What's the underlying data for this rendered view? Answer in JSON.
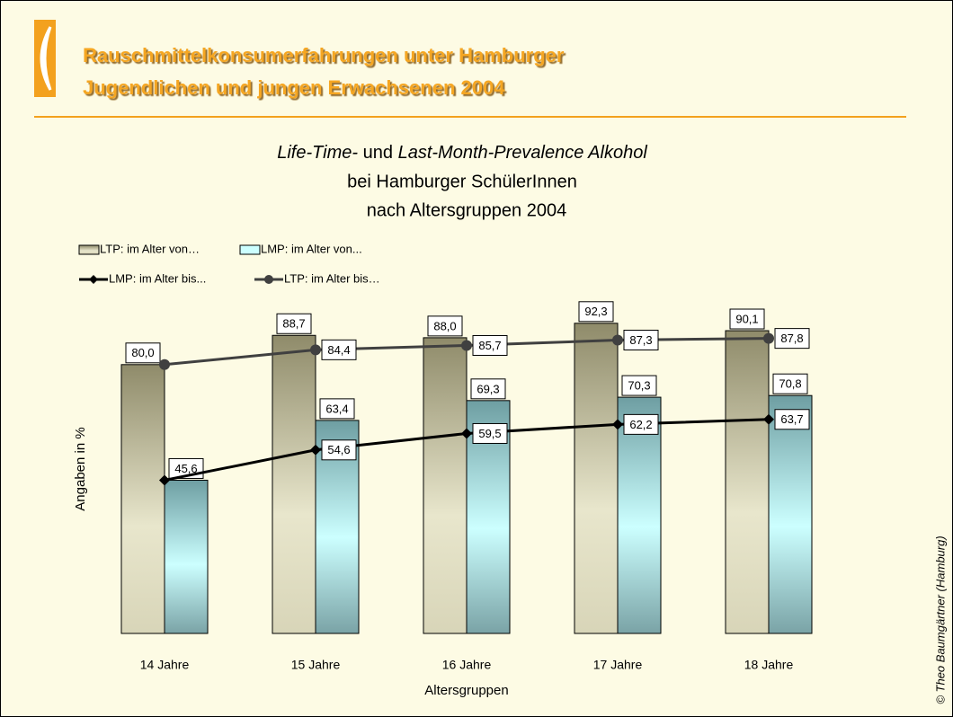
{
  "header": {
    "title_lines": [
      "Rauschmittelkonsumerfahrungen unter Hamburger",
      "Jugendlichen und jungen Erwachsenen 2004"
    ]
  },
  "credit": "© Theo Baumgärtner (Hamburg)",
  "chart_data": {
    "type": "bar",
    "title_parts": [
      "Life-Time-",
      "und",
      "Last-Month-Prevalence Alkohol"
    ],
    "subtitle_lines": [
      "bei Hamburger SchülerInnen",
      "nach Altersgruppen 2004"
    ],
    "y_label": "Angaben in %",
    "x_label": "Altersgruppen",
    "categories": [
      "14 Jahre",
      "15 Jahre",
      "16 Jahre",
      "17 Jahre",
      "18 Jahre"
    ],
    "ylim": [
      0,
      100
    ],
    "series": [
      {
        "name": "LTP: im Alter von…",
        "type": "bar",
        "color": "#9c9878",
        "values": [
          80.0,
          88.7,
          88.0,
          92.3,
          90.1
        ],
        "value_labels": [
          "80,0",
          "88,7",
          "88,0",
          "92,3",
          "90,1"
        ]
      },
      {
        "name": "LMP: im Alter von...",
        "type": "bar",
        "color": "#7fb0b4",
        "values": [
          45.6,
          63.4,
          69.3,
          70.3,
          70.8
        ],
        "value_labels": [
          "45,6",
          "63,4",
          "69,3",
          "70,3",
          "70,8"
        ]
      },
      {
        "name": "LMP: im Alter bis...",
        "type": "line",
        "marker": "diamond",
        "color": "#000000",
        "values": [
          45.6,
          54.6,
          59.5,
          62.2,
          63.7
        ],
        "value_labels": [
          null,
          "54,6",
          "59,5",
          "62,2",
          "63,7"
        ]
      },
      {
        "name": "LTP: im Alter bis…",
        "type": "line",
        "marker": "circle",
        "color": "#404040",
        "values": [
          80.0,
          84.4,
          85.7,
          87.3,
          87.8
        ],
        "value_labels": [
          null,
          "84,4",
          "85,7",
          "87,3",
          "87,8"
        ]
      }
    ]
  }
}
